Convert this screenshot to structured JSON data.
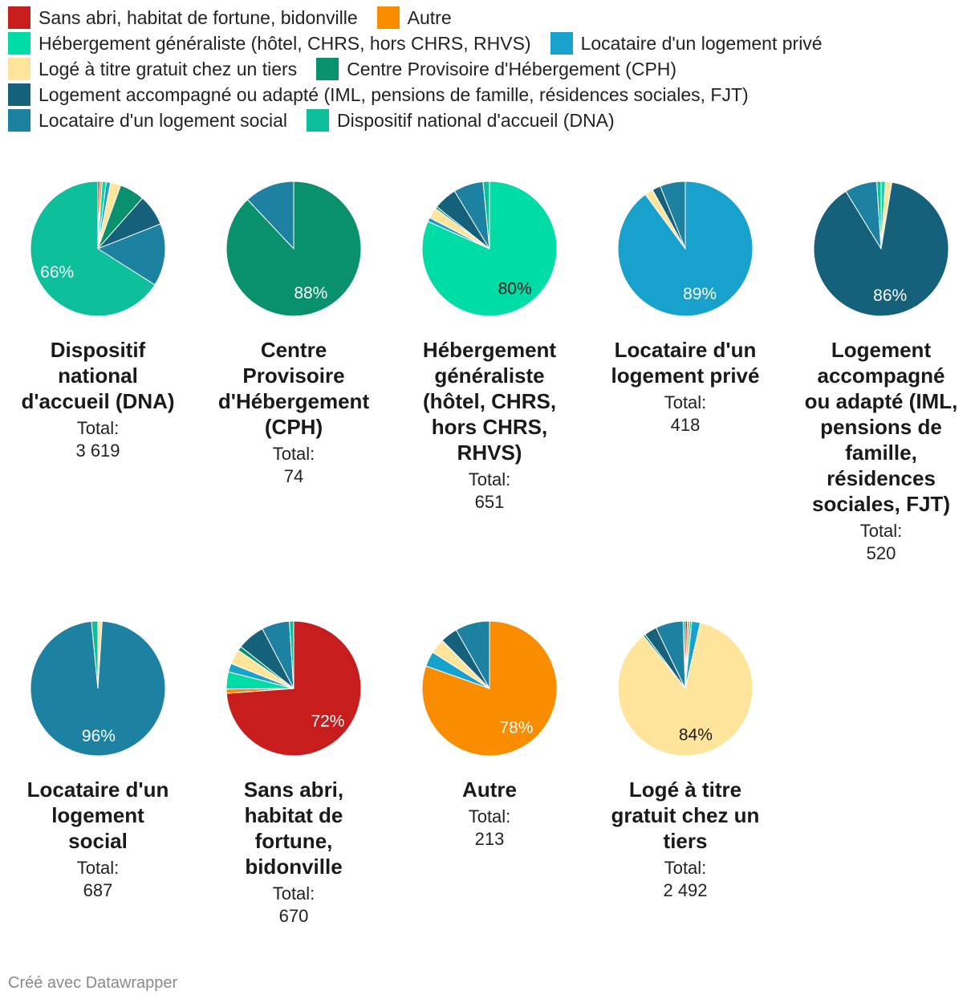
{
  "legend": [
    {
      "label": "Sans abri, habitat de fortune, bidonville",
      "color": "#c71e1d"
    },
    {
      "label": "Autre",
      "color": "#fa8c00"
    },
    {
      "label": "Hébergement généraliste (hôtel, CHRS, hors CHRS, RHVS)",
      "color": "#00dca6"
    },
    {
      "label": "Locataire d'un logement privé",
      "color": "#18a1cd"
    },
    {
      "label": "Logé à titre gratuit chez un tiers",
      "color": "#ffe59c"
    },
    {
      "label": "Centre Provisoire d'Hébergement (CPH)",
      "color": "#09916d"
    },
    {
      "label": "Logement accompagné ou adapté (IML, pensions de famille, résidences sociales, FJT)",
      "color": "#15607a"
    },
    {
      "label": "Locataire d'un logement social",
      "color": "#1d81a2"
    },
    {
      "label": "Dispositif national d'accueil (DNA)",
      "color": "#0ebf9c"
    }
  ],
  "chart_data": {
    "type": "pie",
    "series_order": [
      "Sans abri, habitat de fortune, bidonville",
      "Autre",
      "Hébergement généraliste (hôtel, CHRS, hors CHRS, RHVS)",
      "Locataire d'un logement privé",
      "Logé à titre gratuit chez un tiers",
      "Centre Provisoire d'Hébergement (CPH)",
      "Logement accompagné ou adapté (IML, pensions de famille, résidences sociales, FJT)",
      "Locataire d'un logement social",
      "Dispositif national d'accueil (DNA)"
    ],
    "total_label": "Total:",
    "pies": [
      {
        "title": "Dispositif national d'accueil (DNA)",
        "total": "3 619",
        "percent_label": "66%",
        "label_color": "#ffffff",
        "values": [
          0.5,
          0.5,
          1.0,
          1.0,
          2.5,
          6.0,
          7.5,
          15.0,
          66.0
        ]
      },
      {
        "title": "Centre Provisoire d'Hébergement (CPH)",
        "total": "74",
        "percent_label": "88%",
        "label_color": "#ffffff",
        "values": [
          0,
          0,
          0,
          0,
          0,
          88.0,
          0,
          12.0,
          0
        ]
      },
      {
        "title": "Hébergement généraliste (hôtel, CHRS, hors CHRS, RHVS)",
        "total": "651",
        "percent_label": "80%",
        "label_color": "#1a1a1a",
        "values": [
          0,
          0,
          80.0,
          1.0,
          2.5,
          0.5,
          5.5,
          7.0,
          1.5
        ]
      },
      {
        "title": "Locataire d'un logement privé",
        "total": "418",
        "percent_label": "89%",
        "label_color": "#ffffff",
        "values": [
          0,
          0,
          0,
          89.0,
          2.0,
          0,
          2.0,
          6.0,
          0
        ]
      },
      {
        "title": "Logement accompagné ou adapté (IML, pensions de famille, résidences sociales, FJT)",
        "total": "520",
        "percent_label": "86%",
        "label_color": "#ffffff",
        "values": [
          0,
          0,
          1.0,
          0,
          1.5,
          0,
          86.0,
          7.5,
          1.0
        ]
      },
      {
        "title": "Locataire d'un logement social",
        "total": "687",
        "percent_label": "96%",
        "label_color": "#ffffff",
        "values": [
          0,
          0,
          0,
          0,
          1.0,
          0,
          0,
          96.0,
          1.5
        ]
      },
      {
        "title": "Sans abri, habitat de fortune, bidonville",
        "total": "670",
        "percent_label": "72%",
        "label_color": "#ffffff",
        "values": [
          72.0,
          1.0,
          4.0,
          2.0,
          3.5,
          1.0,
          6.5,
          6.5,
          1.0
        ]
      },
      {
        "title": "Autre",
        "total": "213",
        "percent_label": "78%",
        "label_color": "#ffffff",
        "values": [
          0,
          78.0,
          0,
          3.5,
          3.5,
          0,
          4.0,
          8.0,
          0
        ]
      },
      {
        "title": "Logé à titre gratuit chez un tiers",
        "total": "2 492",
        "percent_label": "84%",
        "label_color": "#1a1a1a",
        "values": [
          0.5,
          0.5,
          0.5,
          2.0,
          84.0,
          0.5,
          3.0,
          6.5,
          0.5
        ]
      }
    ]
  },
  "footer": "Créé avec Datawrapper"
}
